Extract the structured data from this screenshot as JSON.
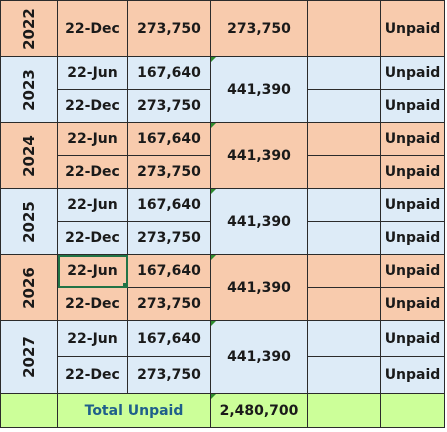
{
  "colors": {
    "orange": "#f8cbad",
    "blue": "#ddebf7",
    "total": "#ccff99",
    "grid": "#2b2b2b"
  },
  "rows": [
    {
      "year": "2022",
      "entries": [
        {
          "date": "22-Dec",
          "amount": "273,750",
          "status": "Unpaid"
        }
      ],
      "subtotal": "273,750"
    },
    {
      "year": "2023",
      "entries": [
        {
          "date": "22-Jun",
          "amount": "167,640",
          "status": "Unpaid"
        },
        {
          "date": "22-Dec",
          "amount": "273,750",
          "status": "Unpaid"
        }
      ],
      "subtotal": "441,390"
    },
    {
      "year": "2024",
      "entries": [
        {
          "date": "22-Jun",
          "amount": "167,640",
          "status": "Unpaid"
        },
        {
          "date": "22-Dec",
          "amount": "273,750",
          "status": "Unpaid"
        }
      ],
      "subtotal": "441,390"
    },
    {
      "year": "2025",
      "entries": [
        {
          "date": "22-Jun",
          "amount": "167,640",
          "status": "Unpaid"
        },
        {
          "date": "22-Dec",
          "amount": "273,750",
          "status": "Unpaid"
        }
      ],
      "subtotal": "441,390"
    },
    {
      "year": "2026",
      "entries": [
        {
          "date": "22-Jun",
          "amount": "167,640",
          "status": "Unpaid"
        },
        {
          "date": "22-Dec",
          "amount": "273,750",
          "status": "Unpaid"
        }
      ],
      "subtotal": "441,390"
    },
    {
      "year": "2027",
      "entries": [
        {
          "date": "22-Jun",
          "amount": "167,640",
          "status": "Unpaid"
        },
        {
          "date": "22-Dec",
          "amount": "273,750",
          "status": "Unpaid"
        }
      ],
      "subtotal": "441,390"
    }
  ],
  "total": {
    "label": "Total Unpaid",
    "value": "2,480,700"
  }
}
